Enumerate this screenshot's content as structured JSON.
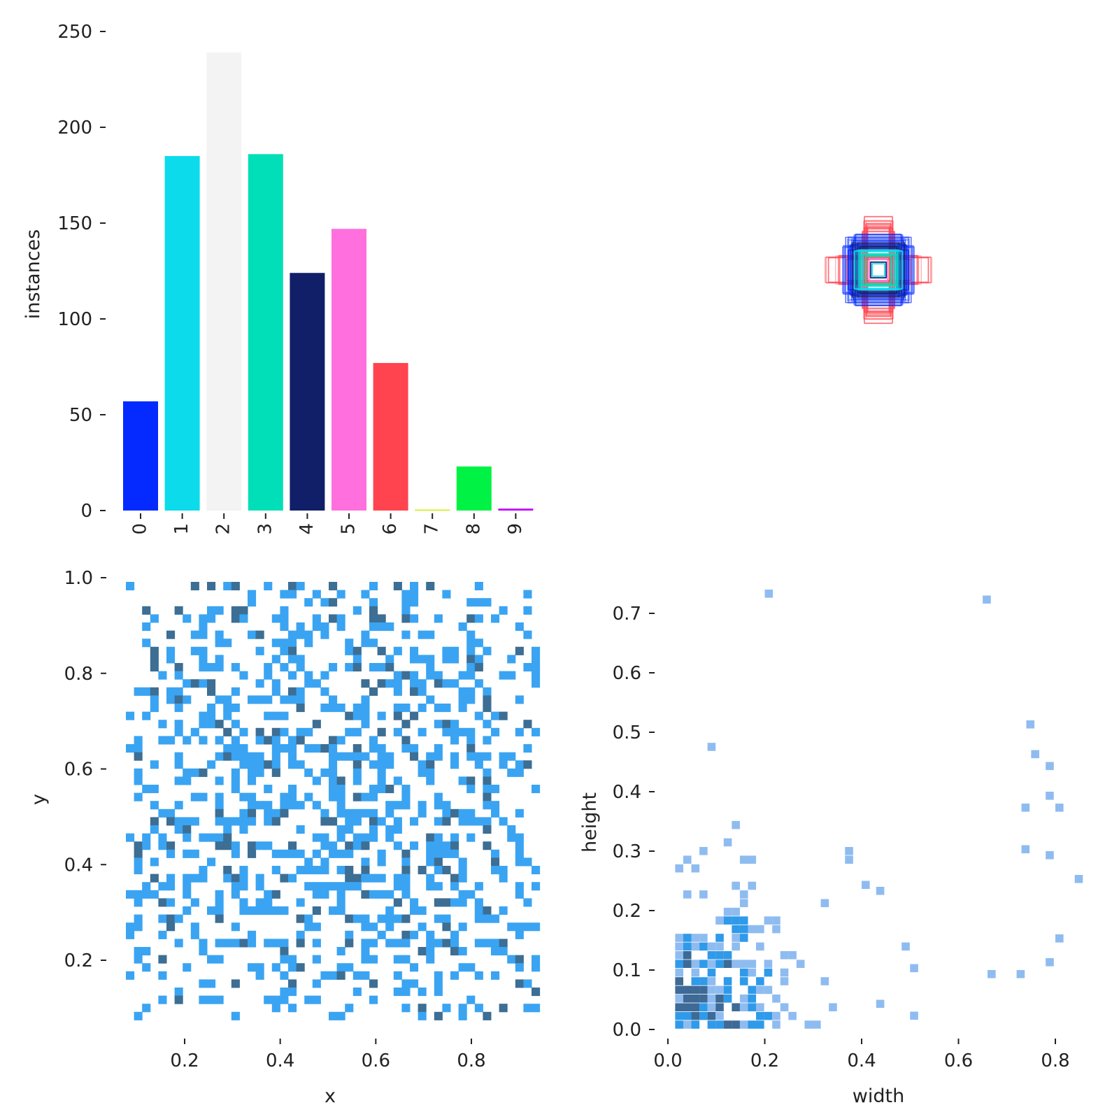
{
  "chart_data": [
    {
      "type": "bar",
      "panel": "top-left",
      "categories": [
        "0",
        "1",
        "2",
        "3",
        "4",
        "5",
        "6",
        "7",
        "8",
        "9"
      ],
      "values": [
        57,
        185,
        239,
        186,
        124,
        147,
        77,
        0.5,
        23,
        1
      ],
      "colors": [
        "#042aff",
        "#0bdbeb",
        "#f3f3f3",
        "#00dfb7",
        "#111f68",
        "#ff6fdd",
        "#ff444f",
        "#cced00",
        "#00f344",
        "#bd00ff"
      ],
      "ylabel": "instances",
      "xlabel": "",
      "ylim": [
        0,
        250
      ],
      "yticks": [
        0,
        50,
        100,
        150,
        200,
        250
      ],
      "x_tick_rotation": "vertical",
      "grid": false
    },
    {
      "type": "boxes",
      "panel": "top-right",
      "description_colors": [
        "#ff444f",
        "#042aff",
        "#0bdbeb",
        "#111f68"
      ],
      "center": [
        0.5,
        0.5
      ],
      "boxes": [
        {
          "w": 0.33,
          "h": 0.08,
          "c": "#ff444f"
        },
        {
          "w": 0.26,
          "h": 0.09,
          "c": "#ff444f"
        },
        {
          "w": 0.2,
          "h": 0.07,
          "c": "#ff444f"
        },
        {
          "w": 0.09,
          "h": 0.26,
          "c": "#ff444f"
        },
        {
          "w": 0.08,
          "h": 0.3,
          "c": "#ff444f"
        },
        {
          "w": 0.09,
          "h": 0.33,
          "c": "#ff444f"
        },
        {
          "w": 0.07,
          "h": 0.28,
          "c": "#ff444f"
        },
        {
          "w": 0.1,
          "h": 0.24,
          "c": "#ff444f"
        },
        {
          "w": 0.18,
          "h": 0.16,
          "c": "#042aff"
        },
        {
          "w": 0.2,
          "h": 0.2,
          "c": "#042aff"
        },
        {
          "w": 0.17,
          "h": 0.19,
          "c": "#042aff"
        },
        {
          "w": 0.22,
          "h": 0.15,
          "c": "#042aff"
        },
        {
          "w": 0.15,
          "h": 0.22,
          "c": "#042aff"
        },
        {
          "w": 0.19,
          "h": 0.13,
          "c": "#042aff"
        },
        {
          "w": 0.13,
          "h": 0.18,
          "c": "#042aff"
        },
        {
          "w": 0.16,
          "h": 0.17,
          "c": "#111f68"
        },
        {
          "w": 0.14,
          "h": 0.14,
          "c": "#111f68"
        },
        {
          "w": 0.12,
          "h": 0.15,
          "c": "#111f68"
        },
        {
          "w": 0.15,
          "h": 0.12,
          "c": "#0bdbeb"
        },
        {
          "w": 0.13,
          "h": 0.13,
          "c": "#0bdbeb"
        },
        {
          "w": 0.11,
          "h": 0.12,
          "c": "#0bdbeb"
        },
        {
          "w": 0.1,
          "h": 0.1,
          "c": "#0bdbeb"
        },
        {
          "w": 0.08,
          "h": 0.09,
          "c": "#00dfb7"
        },
        {
          "w": 0.12,
          "h": 0.1,
          "c": "#00dfb7"
        },
        {
          "w": 0.06,
          "h": 0.07,
          "c": "#ff6fdd"
        },
        {
          "w": 0.05,
          "h": 0.05,
          "c": "#111f68"
        },
        {
          "w": 0.04,
          "h": 0.04,
          "c": "#0bdbeb"
        }
      ]
    },
    {
      "type": "heatmap",
      "panel": "bottom-left",
      "xlabel": "x",
      "ylabel": "y",
      "xlim": [
        0.05,
        0.95
      ],
      "ylim": [
        0.05,
        1.0
      ],
      "xticks": [
        "0.2",
        "0.4",
        "0.6",
        "0.8"
      ],
      "yticks": [
        "0.2",
        "0.4",
        "0.6",
        "0.8",
        "1.0"
      ],
      "cell_color_light": "#3aa4f2",
      "cell_color_dark": "#3d6e94",
      "grid": false
    },
    {
      "type": "heatmap",
      "panel": "bottom-right",
      "xlabel": "width",
      "ylabel": "height",
      "xlim": [
        0.0,
        0.85
      ],
      "ylim": [
        0.0,
        0.75
      ],
      "xticks": [
        "0.0",
        "0.2",
        "0.4",
        "0.6",
        "0.8"
      ],
      "yticks": [
        "0.0",
        "0.1",
        "0.2",
        "0.3",
        "0.4",
        "0.5",
        "0.6",
        "0.7"
      ],
      "cell_color_light": "#8fbcf0",
      "cell_color_mid": "#2f9ae9",
      "cell_color_dark": "#3d6a96",
      "grid": false
    }
  ]
}
